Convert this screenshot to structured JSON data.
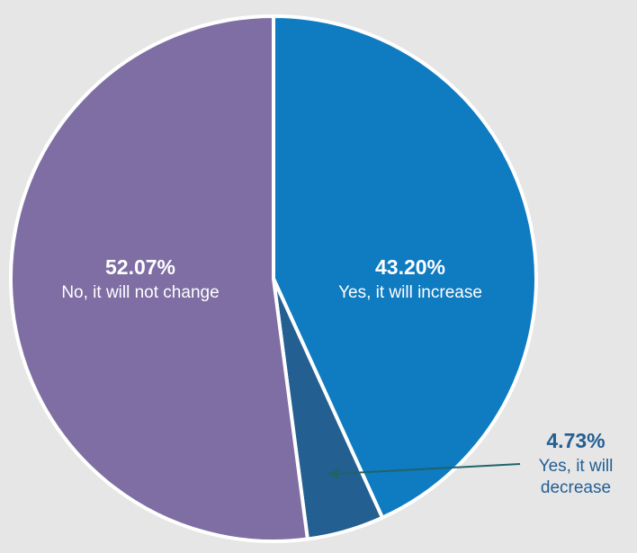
{
  "chart_data": {
    "type": "pie",
    "title": "",
    "start_angle_deg": 0,
    "direction": "clockwise",
    "slices": [
      {
        "label": "Yes, it will increase",
        "value": 43.2,
        "value_label": "43.20%",
        "color": "#0f7bc0",
        "label_color": "#ffffff"
      },
      {
        "label": "Yes, it will decrease",
        "value": 4.73,
        "value_label": "4.73%",
        "color": "#245f91",
        "label_color": "#245f91",
        "label_lines": [
          "Yes, it will",
          "decrease"
        ],
        "callout": true
      },
      {
        "label": "No, it will not change",
        "value": 52.07,
        "value_label": "52.07%",
        "color": "#7e6ea3",
        "label_color": "#ffffff"
      }
    ],
    "background_color": "#e6e6e7",
    "separator_color": "#ffffff",
    "callout_arrow_color": "#1f6468",
    "legend": "none"
  }
}
